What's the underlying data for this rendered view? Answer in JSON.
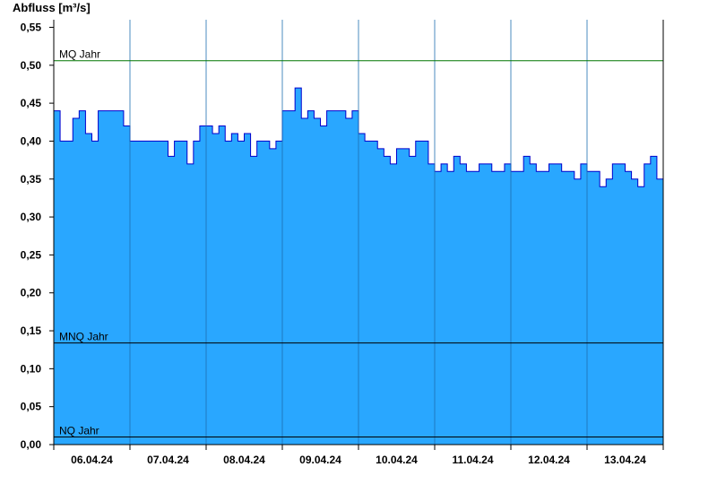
{
  "chart_data": {
    "type": "area",
    "ylabel": "Abfluss [m³/s]",
    "ylim": [
      0,
      0.56
    ],
    "ytick_values": [
      0,
      0.05,
      0.1,
      0.15,
      0.2,
      0.25,
      0.3,
      0.35,
      0.4,
      0.45,
      0.5,
      0.55
    ],
    "ytick_labels": [
      "0,00",
      "0,05",
      "0,10",
      "0,15",
      "0,20",
      "0,25",
      "0,30",
      "0,35",
      "0,40",
      "0,45",
      "0,50",
      "0,55"
    ],
    "x_start": "2024-04-06T00:00",
    "x_end": "2024-04-14T00:00",
    "x_tick_labels": [
      "06.04.24",
      "07.04.24",
      "08.04.24",
      "09.04.24",
      "10.04.24",
      "11.04.24",
      "12.04.24",
      "13.04.24"
    ],
    "grid": false,
    "fill_color": "#29a7ff",
    "line_color": "#0000cc",
    "reference_lines": [
      {
        "label": "MQ Jahr",
        "value": 0.506,
        "color": "#007700"
      },
      {
        "label": "MNQ Jahr",
        "value": 0.134,
        "color": "#000000"
      },
      {
        "label": "NQ Jahr",
        "value": 0.01,
        "color": "#000000"
      }
    ],
    "series": [
      {
        "x": [
          "2024-04-06T00:00",
          "2024-04-06T02:00",
          "2024-04-06T04:00",
          "2024-04-06T06:00",
          "2024-04-06T08:00",
          "2024-04-06T10:00",
          "2024-04-06T12:00",
          "2024-04-06T14:00",
          "2024-04-06T16:00",
          "2024-04-06T18:00",
          "2024-04-06T20:00",
          "2024-04-06T22:00",
          "2024-04-07T00:00",
          "2024-04-07T02:00",
          "2024-04-07T04:00",
          "2024-04-07T06:00",
          "2024-04-07T08:00",
          "2024-04-07T10:00",
          "2024-04-07T12:00",
          "2024-04-07T14:00",
          "2024-04-07T16:00",
          "2024-04-07T18:00",
          "2024-04-07T20:00",
          "2024-04-07T22:00",
          "2024-04-08T00:00",
          "2024-04-08T02:00",
          "2024-04-08T04:00",
          "2024-04-08T06:00",
          "2024-04-08T08:00",
          "2024-04-08T10:00",
          "2024-04-08T12:00",
          "2024-04-08T14:00",
          "2024-04-08T16:00",
          "2024-04-08T18:00",
          "2024-04-08T20:00",
          "2024-04-08T22:00",
          "2024-04-09T00:00",
          "2024-04-09T02:00",
          "2024-04-09T04:00",
          "2024-04-09T06:00",
          "2024-04-09T08:00",
          "2024-04-09T10:00",
          "2024-04-09T12:00",
          "2024-04-09T14:00",
          "2024-04-09T16:00",
          "2024-04-09T18:00",
          "2024-04-09T20:00",
          "2024-04-09T22:00",
          "2024-04-10T00:00",
          "2024-04-10T02:00",
          "2024-04-10T04:00",
          "2024-04-10T06:00",
          "2024-04-10T08:00",
          "2024-04-10T10:00",
          "2024-04-10T12:00",
          "2024-04-10T14:00",
          "2024-04-10T16:00",
          "2024-04-10T18:00",
          "2024-04-10T20:00",
          "2024-04-10T22:00",
          "2024-04-11T00:00",
          "2024-04-11T02:00",
          "2024-04-11T04:00",
          "2024-04-11T06:00",
          "2024-04-11T08:00",
          "2024-04-11T10:00",
          "2024-04-11T12:00",
          "2024-04-11T14:00",
          "2024-04-11T16:00",
          "2024-04-11T18:00",
          "2024-04-11T20:00",
          "2024-04-11T22:00",
          "2024-04-12T00:00",
          "2024-04-12T02:00",
          "2024-04-12T04:00",
          "2024-04-12T06:00",
          "2024-04-12T08:00",
          "2024-04-12T10:00",
          "2024-04-12T12:00",
          "2024-04-12T14:00",
          "2024-04-12T16:00",
          "2024-04-12T18:00",
          "2024-04-12T20:00",
          "2024-04-12T22:00",
          "2024-04-13T00:00",
          "2024-04-13T02:00",
          "2024-04-13T04:00",
          "2024-04-13T06:00",
          "2024-04-13T08:00",
          "2024-04-13T10:00",
          "2024-04-13T12:00",
          "2024-04-13T14:00",
          "2024-04-13T16:00",
          "2024-04-13T18:00",
          "2024-04-13T20:00",
          "2024-04-13T22:00",
          "2024-04-14T00:00"
        ],
        "values": [
          0.44,
          0.4,
          0.4,
          0.43,
          0.44,
          0.41,
          0.4,
          0.44,
          0.44,
          0.44,
          0.44,
          0.42,
          0.4,
          0.4,
          0.4,
          0.4,
          0.4,
          0.4,
          0.38,
          0.4,
          0.4,
          0.37,
          0.4,
          0.42,
          0.42,
          0.41,
          0.42,
          0.4,
          0.41,
          0.4,
          0.41,
          0.38,
          0.4,
          0.4,
          0.39,
          0.4,
          0.44,
          0.44,
          0.47,
          0.43,
          0.44,
          0.43,
          0.42,
          0.44,
          0.44,
          0.44,
          0.43,
          0.44,
          0.41,
          0.4,
          0.4,
          0.39,
          0.38,
          0.37,
          0.39,
          0.39,
          0.38,
          0.4,
          0.4,
          0.37,
          0.36,
          0.37,
          0.36,
          0.38,
          0.37,
          0.36,
          0.36,
          0.37,
          0.37,
          0.36,
          0.36,
          0.37,
          0.36,
          0.36,
          0.38,
          0.37,
          0.36,
          0.36,
          0.37,
          0.37,
          0.36,
          0.36,
          0.35,
          0.37,
          0.36,
          0.36,
          0.34,
          0.35,
          0.37,
          0.37,
          0.36,
          0.35,
          0.34,
          0.37,
          0.38,
          0.35,
          0.35
        ]
      }
    ]
  }
}
